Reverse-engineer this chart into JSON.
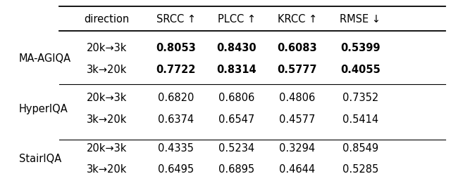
{
  "headers": [
    "direction",
    "SRCC ↑",
    "PLCC ↑",
    "KRCC ↑",
    "RMSE ↓"
  ],
  "methods": [
    "MA-AGIQA",
    "HyperIQA",
    "StairIQA"
  ],
  "rows": [
    [
      "20k→3k",
      "0.8053",
      "0.8430",
      "0.6083",
      "0.5399"
    ],
    [
      "3k→20k",
      "0.7722",
      "0.8314",
      "0.5777",
      "0.4055"
    ],
    [
      "20k→3k",
      "0.6820",
      "0.6806",
      "0.4806",
      "0.7352"
    ],
    [
      "3k→20k",
      "0.6374",
      "0.6547",
      "0.4577",
      "0.5414"
    ],
    [
      "20k→3k",
      "0.4335",
      "0.5234",
      "0.3294",
      "0.8549"
    ],
    [
      "3k→20k",
      "0.6495",
      "0.6895",
      "0.4644",
      "0.5285"
    ]
  ],
  "bold_rows": [
    0,
    1
  ],
  "bg_color": "#ffffff",
  "text_color": "#000000",
  "figsize": [
    6.4,
    2.48
  ],
  "dpi": 100
}
